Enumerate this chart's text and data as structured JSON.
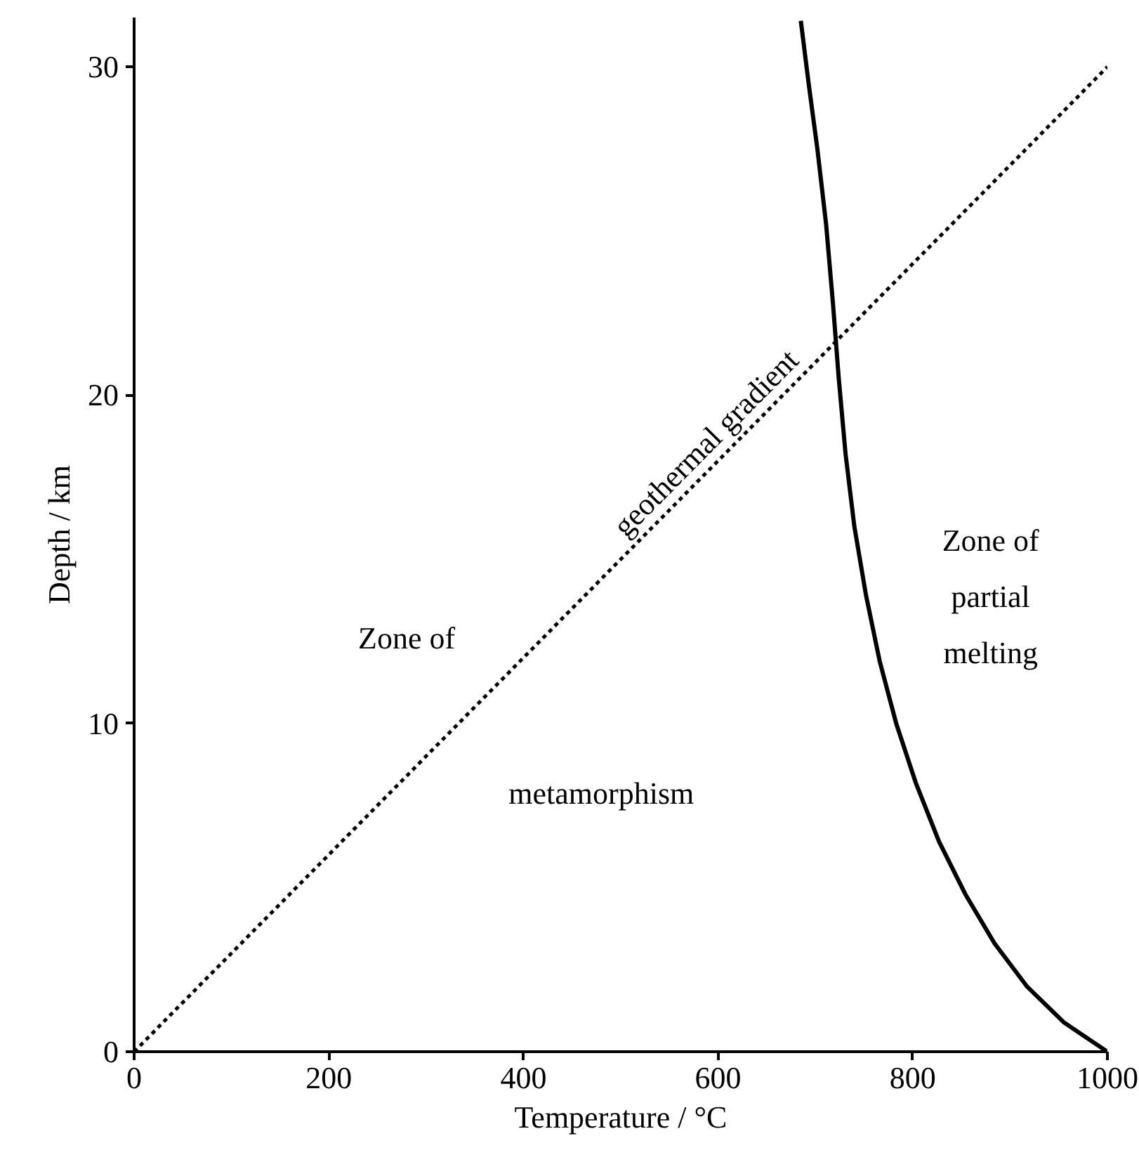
{
  "chart_data": {
    "type": "line",
    "xlabel": "Temperature / °C",
    "ylabel": "Depth / km",
    "xlim": [
      0,
      1000
    ],
    "ylim": [
      0,
      31.5
    ],
    "xticks": [
      0,
      200,
      400,
      600,
      800,
      1000
    ],
    "yticks": [
      0,
      10,
      20,
      30
    ],
    "grid": false,
    "marker": "none",
    "series": [
      {
        "name": "geothermal gradient",
        "color": "#000000",
        "line_style": "dotted",
        "x": [
          0,
          1000
        ],
        "values": [
          0,
          30
        ]
      },
      {
        "color": "#000000",
        "line_style": "solid",
        "x": [
          685,
          693,
          702,
          711,
          718,
          724,
          731,
          740,
          752,
          766,
          783,
          803,
          827,
          854,
          884,
          917,
          955,
          1000
        ],
        "values": [
          31.4,
          29.5,
          27.5,
          25.2,
          22.8,
          20.5,
          18.2,
          16.0,
          13.9,
          11.9,
          10.0,
          8.2,
          6.4,
          4.8,
          3.3,
          2.0,
          0.9,
          0
        ]
      }
    ],
    "annotations": [
      "Zone of",
      "metamorphism",
      "Zone of\npartial\nmelting"
    ]
  }
}
